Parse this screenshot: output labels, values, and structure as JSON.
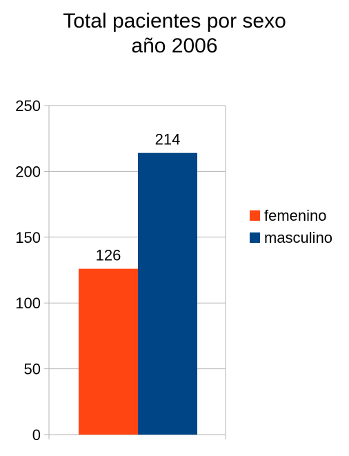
{
  "chart_data": {
    "type": "bar",
    "title_lines": [
      "Total pacientes por sexo",
      "año 2006"
    ],
    "categories": [
      ""
    ],
    "series": [
      {
        "name": "femenino",
        "values": [
          126
        ],
        "color": "#ff4612"
      },
      {
        "name": "masculino",
        "values": [
          214
        ],
        "color": "#004586"
      }
    ],
    "ylim": [
      0,
      250
    ],
    "yticks": [
      0,
      50,
      100,
      150,
      200,
      250
    ],
    "grid": true,
    "legend_position": "right",
    "gridline_color": "#b3b3b3",
    "axis_color": "#b3b3b3"
  }
}
